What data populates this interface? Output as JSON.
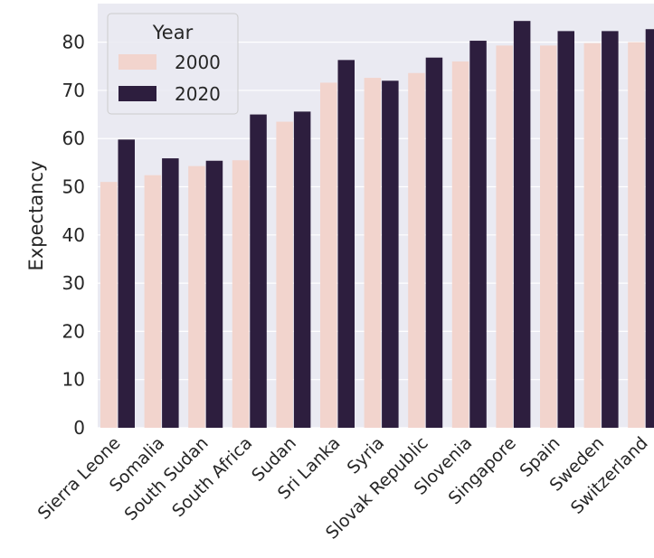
{
  "chart_data": {
    "type": "bar",
    "title": "",
    "xlabel": "",
    "ylabel": "Expectancy",
    "ylim": [
      0,
      88
    ],
    "yticks": [
      0,
      10,
      20,
      30,
      40,
      50,
      60,
      70,
      80
    ],
    "grid": true,
    "legend": {
      "title": "Year",
      "placement": "top-left"
    },
    "categories": [
      "Sierra Leone",
      "Somalia",
      "South Sudan",
      "South Africa",
      "Sudan",
      "Sri Lanka",
      "Syria",
      "Slovak Republic",
      "Slovenia",
      "Singapore",
      "Spain",
      "Sweden",
      "Switzerland"
    ],
    "series": [
      {
        "name": "2000",
        "color": "#f2d4cd",
        "values": [
          51.0,
          52.4,
          54.3,
          55.5,
          63.5,
          71.6,
          72.6,
          73.6,
          76.0,
          79.3,
          79.3,
          79.8,
          80.0
        ]
      },
      {
        "name": "2020",
        "color": "#2d1e3e",
        "values": [
          59.8,
          55.9,
          55.4,
          65.0,
          65.6,
          76.3,
          72.0,
          76.8,
          80.3,
          84.4,
          82.3,
          82.3,
          82.7
        ]
      }
    ]
  },
  "style": {
    "plot_background": "#eaeaf2",
    "grid_color": "#ffffff",
    "text_color": "#262626"
  }
}
